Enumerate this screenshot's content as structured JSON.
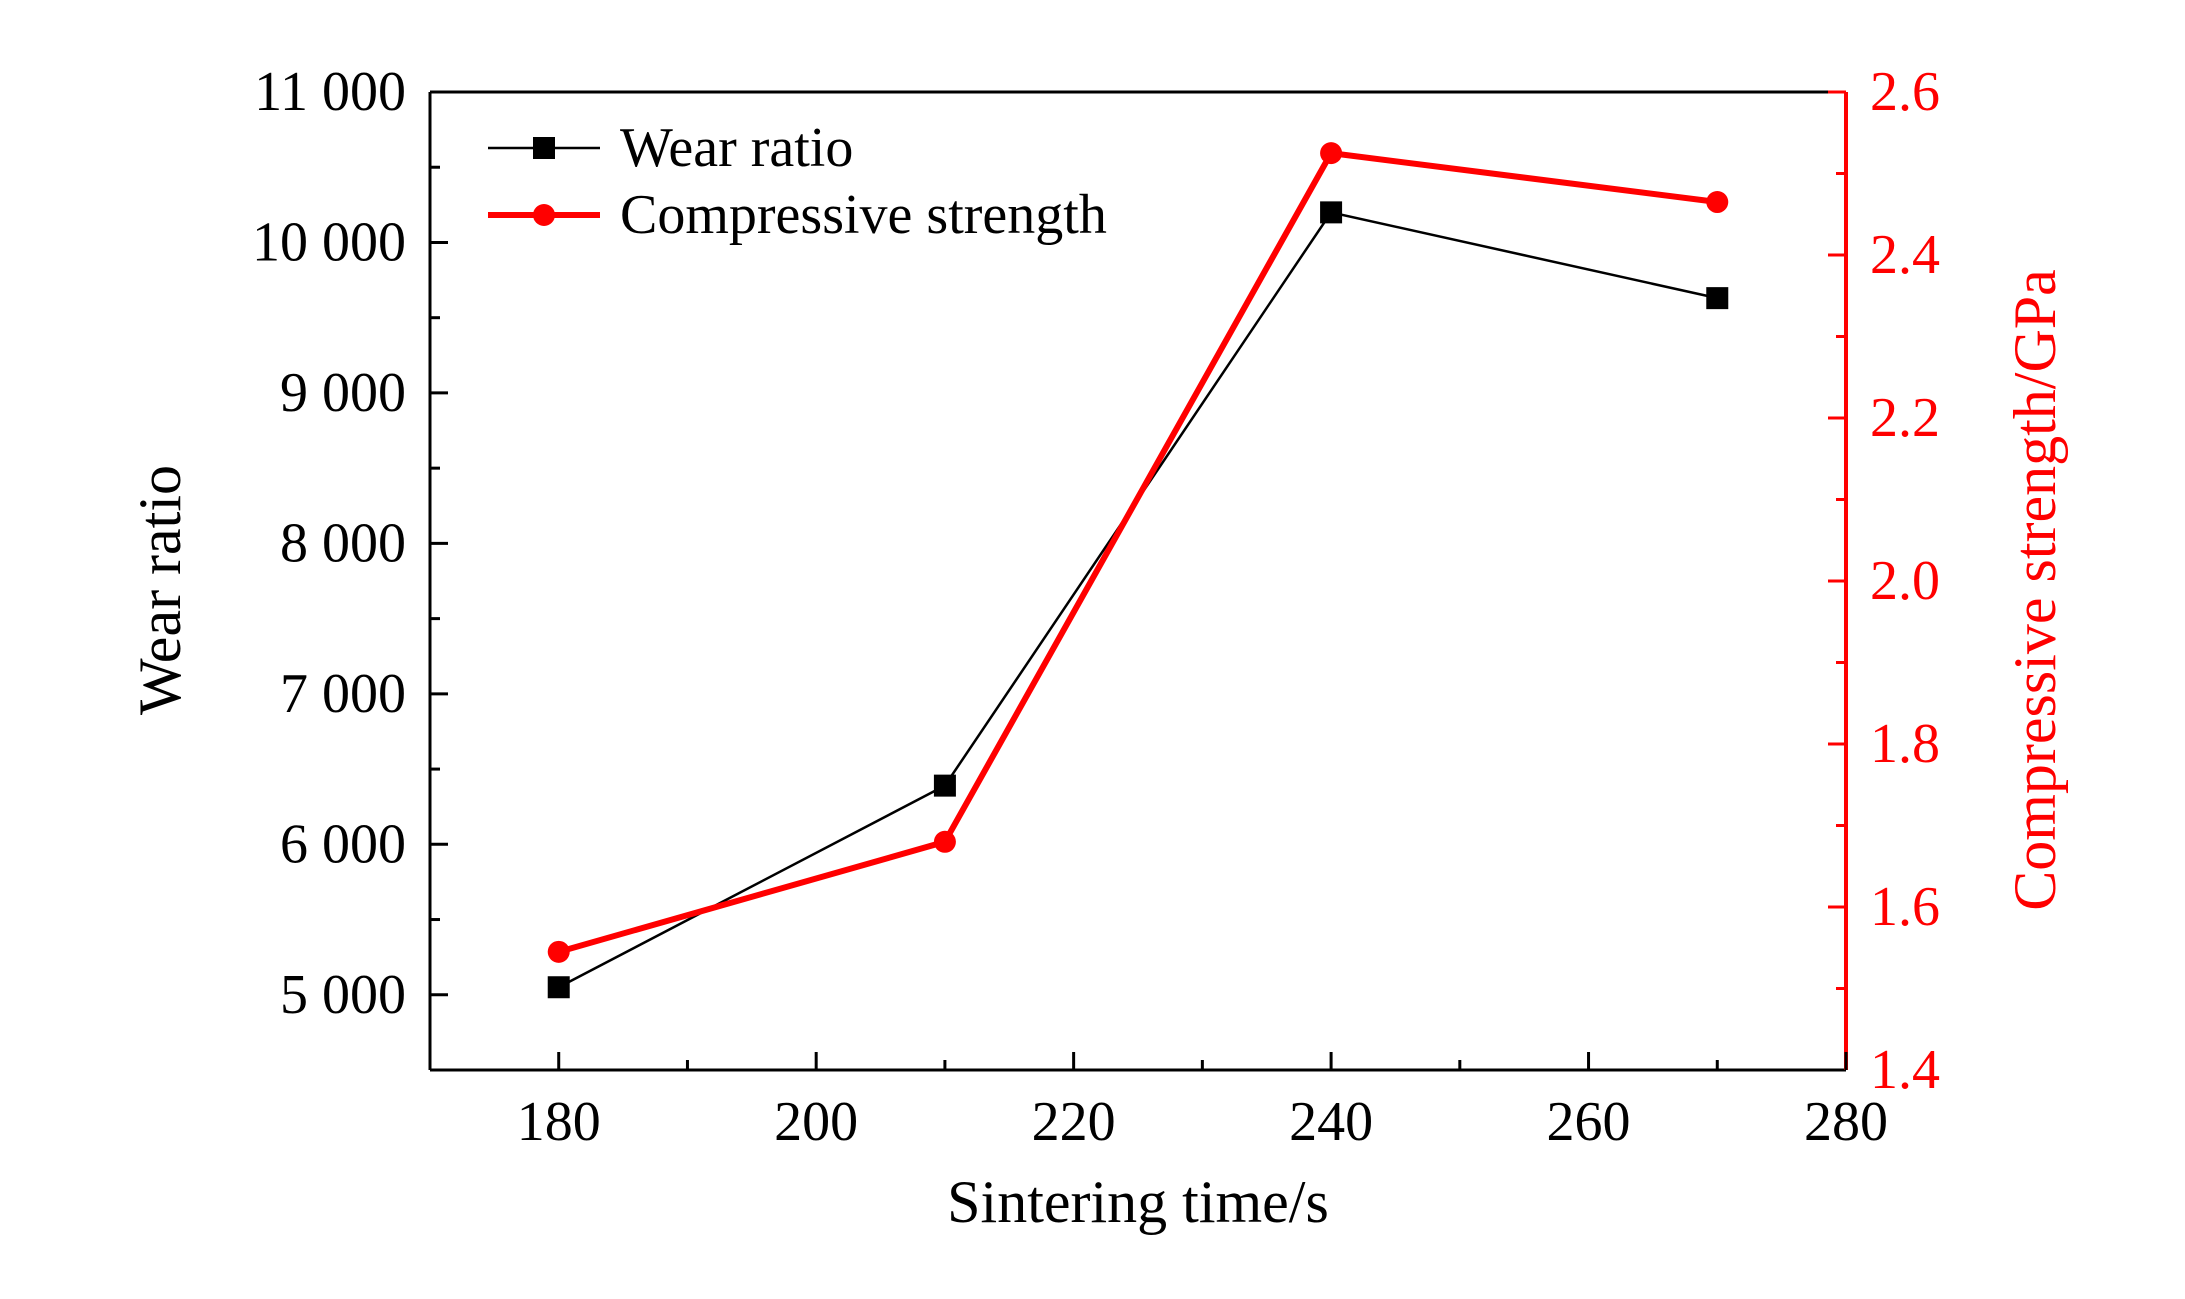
{
  "chart_data": {
    "type": "line",
    "xlabel": "Sintering time/s",
    "x_ticks": [
      "180",
      "200",
      "220",
      "240",
      "260",
      "280"
    ],
    "xlim": [
      170,
      280
    ],
    "x": [
      180,
      210,
      240,
      270
    ],
    "left_axis": {
      "label": "Wear ratio",
      "ylim": [
        4500,
        11000
      ],
      "ticks": [
        5000,
        6000,
        7000,
        8000,
        9000,
        10000,
        11000
      ],
      "tick_labels": [
        "5 000",
        "6 000",
        "7 000",
        "8 000",
        "9 000",
        "10 000",
        "11 000"
      ]
    },
    "right_axis": {
      "label": "Compressive strength/GPa",
      "ylim": [
        1.4,
        2.6
      ],
      "ticks": [
        1.4,
        1.6,
        1.8,
        2.0,
        2.2,
        2.4,
        2.6
      ],
      "tick_labels": [
        "1.4",
        "1.6",
        "1.8",
        "2.0",
        "2.2",
        "2.4",
        "2.6"
      ],
      "color": "#ff0000"
    },
    "series": [
      {
        "name": "Wear ratio",
        "axis": "left",
        "marker": "square",
        "color": "#000000",
        "values": [
          5050,
          6390,
          10200,
          9630
        ]
      },
      {
        "name": "Compressive strength",
        "axis": "right",
        "marker": "circle",
        "color": "#ff0000",
        "values": [
          1.545,
          1.68,
          2.525,
          2.465
        ]
      }
    ],
    "legend_position": "top-left"
  }
}
